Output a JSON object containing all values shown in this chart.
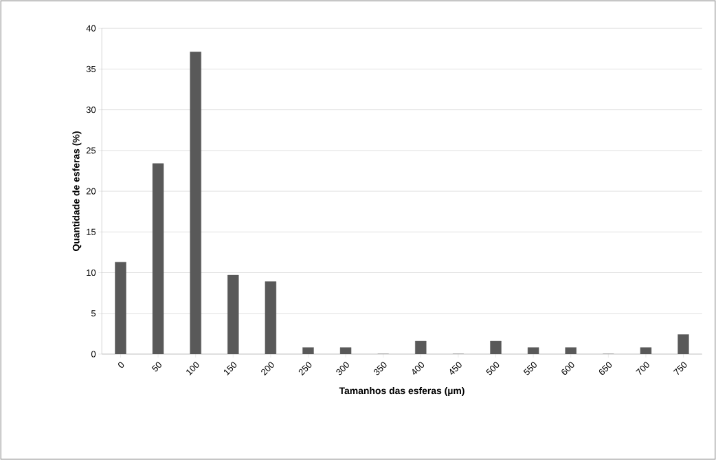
{
  "chart_data": {
    "type": "bar",
    "xlabel": "Tamanhos das esferas (µm)",
    "ylabel": "Quantidade de esferas (%)",
    "categories": [
      "0",
      "50",
      "100",
      "150",
      "200",
      "250",
      "300",
      "350",
      "400",
      "450",
      "500",
      "550",
      "600",
      "650",
      "700",
      "750"
    ],
    "values": [
      11.3,
      23.4,
      37.1,
      9.7,
      8.9,
      0.8,
      0.8,
      0,
      1.6,
      0,
      1.6,
      0.8,
      0.8,
      0,
      0.8,
      2.4
    ],
    "color": "#595959",
    "ylim": [
      0,
      40
    ],
    "yticks": [
      0,
      5,
      10,
      15,
      20,
      25,
      30,
      35,
      40
    ],
    "grid": "y"
  }
}
